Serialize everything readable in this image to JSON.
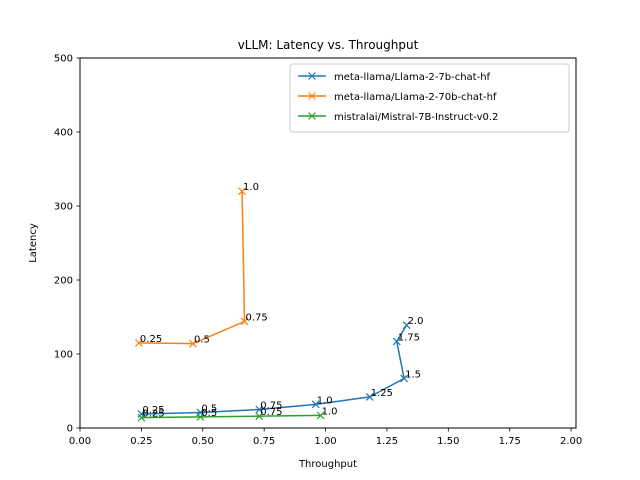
{
  "chart_data": {
    "type": "line",
    "title": "vLLM: Latency vs. Throughput",
    "xlabel": "Throughput",
    "ylabel": "Latency",
    "xlim": [
      0,
      2.02
    ],
    "ylim": [
      0,
      500
    ],
    "xticks": [
      0.0,
      0.25,
      0.5,
      0.75,
      1.0,
      1.25,
      1.5,
      1.75,
      2.0
    ],
    "xtick_labels": [
      "0.00",
      "0.25",
      "0.50",
      "0.75",
      "1.00",
      "1.25",
      "1.50",
      "1.75",
      "2.00"
    ],
    "yticks": [
      0,
      100,
      200,
      300,
      400,
      500
    ],
    "ytick_labels": [
      "0",
      "100",
      "200",
      "300",
      "400",
      "500"
    ],
    "grid": false,
    "legend_position": "top-right",
    "marker": "x",
    "series": [
      {
        "name": "meta-llama/Llama-2-7b-chat-hf",
        "color": "#1f77b4",
        "points": [
          {
            "x": 0.25,
            "y": 19,
            "label": "0.25"
          },
          {
            "x": 0.49,
            "y": 21,
            "label": "0.5"
          },
          {
            "x": 0.73,
            "y": 25,
            "label": "0.75"
          },
          {
            "x": 0.96,
            "y": 32,
            "label": "1.0"
          },
          {
            "x": 1.18,
            "y": 42,
            "label": "1.25"
          },
          {
            "x": 1.32,
            "y": 67,
            "label": "1.5"
          },
          {
            "x": 1.29,
            "y": 117,
            "label": "1.75"
          },
          {
            "x": 1.33,
            "y": 139,
            "label": "2.0"
          }
        ]
      },
      {
        "name": "meta-llama/Llama-2-70b-chat-hf",
        "color": "#ff7f0e",
        "points": [
          {
            "x": 0.24,
            "y": 115,
            "label": "0.25"
          },
          {
            "x": 0.46,
            "y": 114,
            "label": "0.5"
          },
          {
            "x": 0.67,
            "y": 144,
            "label": "0.75"
          },
          {
            "x": 0.66,
            "y": 320,
            "label": "1.0"
          }
        ]
      },
      {
        "name": "mistralai/Mistral-7B-Instruct-v0.2",
        "color": "#2ca02c",
        "points": [
          {
            "x": 0.25,
            "y": 14,
            "label": "0.25"
          },
          {
            "x": 0.49,
            "y": 15,
            "label": "0.5"
          },
          {
            "x": 0.73,
            "y": 16,
            "label": "0.75"
          },
          {
            "x": 0.98,
            "y": 17,
            "label": "1.0"
          }
        ]
      }
    ]
  }
}
